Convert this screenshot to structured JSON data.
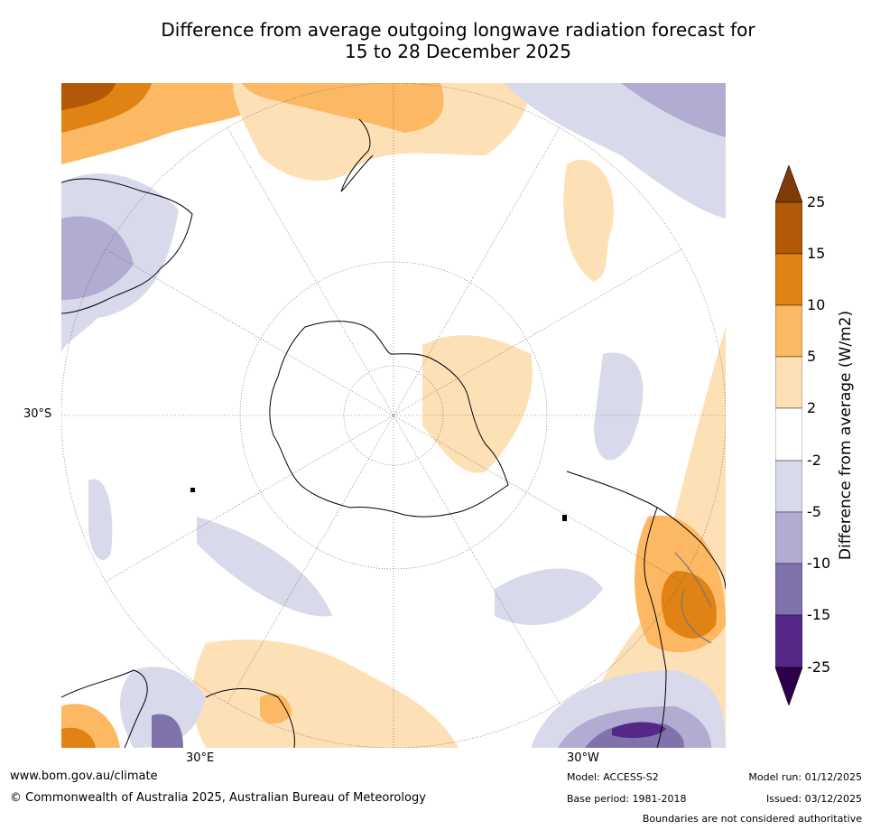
{
  "title": {
    "line1": "Difference from average outgoing longwave radiation forecast for",
    "line2": "15 to 28 December 2025"
  },
  "map": {
    "projection": "south polar stereographic",
    "labels": {
      "lat_30s": "30°S",
      "lon_30e": "30°E",
      "lon_30w": "30°W"
    }
  },
  "legend": {
    "title": "Difference from average (W/m2)",
    "ticks": [
      "25",
      "15",
      "10",
      "5",
      "2",
      "-2",
      "-5",
      "-10",
      "-15",
      "-25"
    ],
    "colors": [
      "#7f3b08",
      "#b35806",
      "#e08214",
      "#fdb863",
      "#fee0b6",
      "#ffffff",
      "#d8daeb",
      "#b2abd2",
      "#8073ac",
      "#542788",
      "#2d004b"
    ]
  },
  "footer": {
    "url": "www.bom.gov.au/climate",
    "copyright": "© Commonwealth of Australia 2025, Australian Bureau of Meteorology",
    "model": "Model: ACCESS-S2",
    "base_period": "Base period: 1981-2018",
    "model_run": "Model run: 01/12/2025",
    "issued": "Issued: 03/12/2025",
    "disclaimer": "Boundaries are not considered authoritative"
  }
}
